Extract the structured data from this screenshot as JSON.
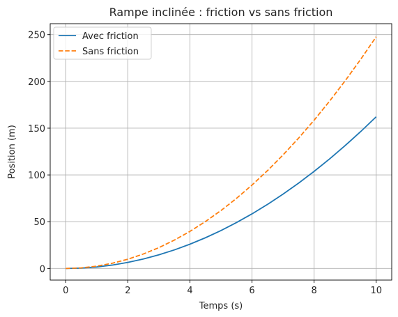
{
  "chart_data": {
    "type": "line",
    "title": "Rampe inclinée : friction vs sans friction",
    "xlabel": "Temps (s)",
    "ylabel": "Position (m)",
    "xlim": [
      -0.5,
      10.5
    ],
    "ylim": [
      -12.4,
      261.7
    ],
    "xticks": [
      0,
      2,
      4,
      6,
      8,
      10
    ],
    "yticks": [
      0,
      50,
      100,
      150,
      200,
      250
    ],
    "grid": true,
    "legend_position": "top-left",
    "x": [
      0,
      0.5,
      1,
      1.5,
      2,
      2.5,
      3,
      3.5,
      4,
      4.5,
      5,
      5.5,
      6,
      6.5,
      7,
      7.5,
      8,
      8.5,
      9,
      9.5,
      10
    ],
    "series": [
      {
        "name": "Avec friction",
        "color": "#1f77b4",
        "style": "solid",
        "values": [
          0,
          0.41,
          1.62,
          3.65,
          6.49,
          10.14,
          14.6,
          19.87,
          25.95,
          32.85,
          40.55,
          49.07,
          58.39,
          68.53,
          79.48,
          91.23,
          103.8,
          117.18,
          131.37,
          146.37,
          162.18
        ]
      },
      {
        "name": "Sans friction",
        "color": "#ff7f0e",
        "style": "dashed",
        "values": [
          0,
          0.62,
          2.48,
          5.57,
          9.91,
          15.48,
          22.29,
          30.34,
          39.63,
          50.16,
          61.93,
          74.93,
          89.18,
          104.66,
          121.38,
          139.34,
          158.54,
          178.98,
          200.65,
          223.57,
          247.72
        ]
      }
    ]
  }
}
